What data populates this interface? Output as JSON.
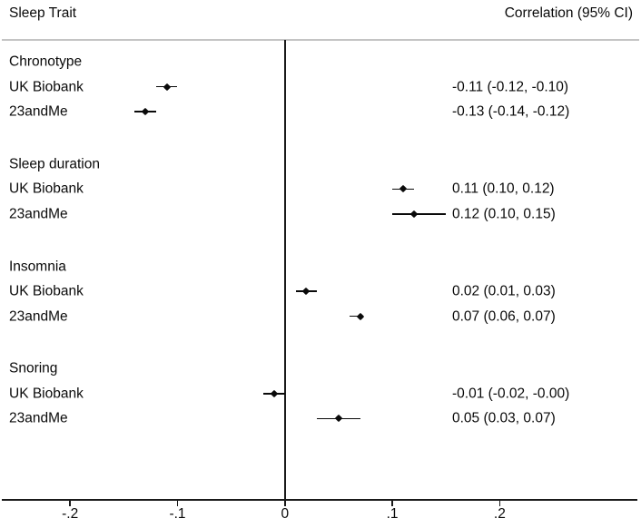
{
  "header": {
    "left": "Sleep Trait",
    "right": "Correlation (95% CI)"
  },
  "chart_data": {
    "type": "forest",
    "title": "",
    "xlabel": "",
    "xlim": [
      -0.265,
      0.332
    ],
    "x_axis": {
      "reference_line": 0,
      "ticks": [
        {
          "value": -0.2,
          "label": "-.2"
        },
        {
          "value": -0.1,
          "label": "-.1"
        },
        {
          "value": 0,
          "label": "0"
        },
        {
          "value": 0.1,
          "label": ".1"
        },
        {
          "value": 0.2,
          "label": ".2"
        }
      ]
    },
    "columns": {
      "left_header": "Sleep Trait",
      "right_header": "Correlation (95% CI)"
    },
    "groups": [
      {
        "name": "Chronotype",
        "rows": [
          {
            "label": "UK Biobank",
            "estimate": -0.11,
            "ci_low": -0.12,
            "ci_high": -0.1,
            "display": "-0.11 (-0.12, -0.10)"
          },
          {
            "label": "23andMe",
            "estimate": -0.13,
            "ci_low": -0.14,
            "ci_high": -0.12,
            "display": "-0.13 (-0.14, -0.12)"
          }
        ]
      },
      {
        "name": "Sleep duration",
        "rows": [
          {
            "label": "UK Biobank",
            "estimate": 0.11,
            "ci_low": 0.1,
            "ci_high": 0.12,
            "display": "0.11 (0.10, 0.12)"
          },
          {
            "label": "23andMe",
            "estimate": 0.12,
            "ci_low": 0.1,
            "ci_high": 0.15,
            "display": "0.12 (0.10, 0.15)"
          }
        ]
      },
      {
        "name": "Insomnia",
        "rows": [
          {
            "label": "UK Biobank",
            "estimate": 0.02,
            "ci_low": 0.01,
            "ci_high": 0.03,
            "display": "0.02 (0.01, 0.03)"
          },
          {
            "label": "23andMe",
            "estimate": 0.07,
            "ci_low": 0.06,
            "ci_high": 0.07,
            "display": "0.07 (0.06, 0.07)"
          }
        ]
      },
      {
        "name": "Snoring",
        "rows": [
          {
            "label": "UK Biobank",
            "estimate": -0.01,
            "ci_low": -0.02,
            "ci_high": -0.0,
            "display": "-0.01 (-0.02, -0.00)"
          },
          {
            "label": "23andMe",
            "estimate": 0.05,
            "ci_low": 0.03,
            "ci_high": 0.07,
            "display": "0.05 (0.03, 0.07)"
          }
        ]
      }
    ],
    "colors": {
      "marker": "#0a0a0a",
      "axis": "#1a1a1a",
      "header_divider": "#c4c4c4",
      "text": "#0a0a0a",
      "background": "#ffffff"
    }
  }
}
